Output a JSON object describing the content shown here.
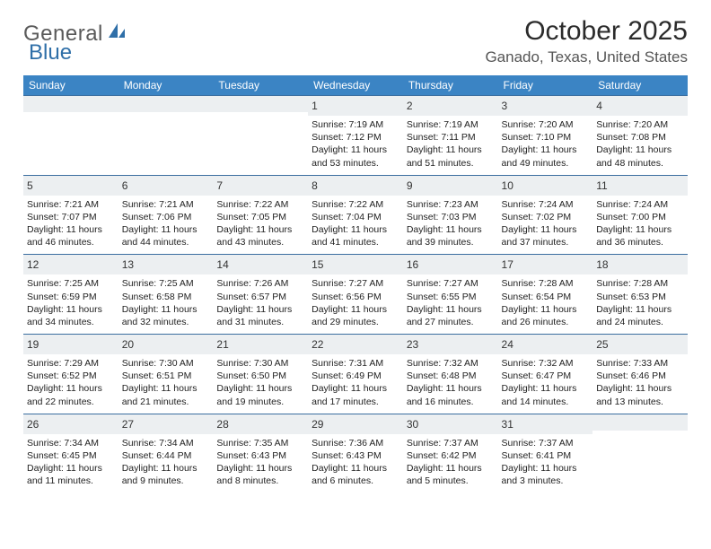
{
  "logo": {
    "word1": "General",
    "word2": "Blue",
    "color_word1": "#6a6a6a",
    "color_word2": "#2f6fa8"
  },
  "title": "October 2025",
  "location": "Ganado, Texas, United States",
  "header_bg": "#3b84c4",
  "day_header_bg": "#eceff1",
  "week_border": "#3b6ea0",
  "days_of_week": [
    "Sunday",
    "Monday",
    "Tuesday",
    "Wednesday",
    "Thursday",
    "Friday",
    "Saturday"
  ],
  "weeks": [
    [
      {
        "n": "",
        "lines": [
          "",
          "",
          "",
          ""
        ]
      },
      {
        "n": "",
        "lines": [
          "",
          "",
          "",
          ""
        ]
      },
      {
        "n": "",
        "lines": [
          "",
          "",
          "",
          ""
        ]
      },
      {
        "n": "1",
        "lines": [
          "Sunrise: 7:19 AM",
          "Sunset: 7:12 PM",
          "Daylight: 11 hours",
          "and 53 minutes."
        ]
      },
      {
        "n": "2",
        "lines": [
          "Sunrise: 7:19 AM",
          "Sunset: 7:11 PM",
          "Daylight: 11 hours",
          "and 51 minutes."
        ]
      },
      {
        "n": "3",
        "lines": [
          "Sunrise: 7:20 AM",
          "Sunset: 7:10 PM",
          "Daylight: 11 hours",
          "and 49 minutes."
        ]
      },
      {
        "n": "4",
        "lines": [
          "Sunrise: 7:20 AM",
          "Sunset: 7:08 PM",
          "Daylight: 11 hours",
          "and 48 minutes."
        ]
      }
    ],
    [
      {
        "n": "5",
        "lines": [
          "Sunrise: 7:21 AM",
          "Sunset: 7:07 PM",
          "Daylight: 11 hours",
          "and 46 minutes."
        ]
      },
      {
        "n": "6",
        "lines": [
          "Sunrise: 7:21 AM",
          "Sunset: 7:06 PM",
          "Daylight: 11 hours",
          "and 44 minutes."
        ]
      },
      {
        "n": "7",
        "lines": [
          "Sunrise: 7:22 AM",
          "Sunset: 7:05 PM",
          "Daylight: 11 hours",
          "and 43 minutes."
        ]
      },
      {
        "n": "8",
        "lines": [
          "Sunrise: 7:22 AM",
          "Sunset: 7:04 PM",
          "Daylight: 11 hours",
          "and 41 minutes."
        ]
      },
      {
        "n": "9",
        "lines": [
          "Sunrise: 7:23 AM",
          "Sunset: 7:03 PM",
          "Daylight: 11 hours",
          "and 39 minutes."
        ]
      },
      {
        "n": "10",
        "lines": [
          "Sunrise: 7:24 AM",
          "Sunset: 7:02 PM",
          "Daylight: 11 hours",
          "and 37 minutes."
        ]
      },
      {
        "n": "11",
        "lines": [
          "Sunrise: 7:24 AM",
          "Sunset: 7:00 PM",
          "Daylight: 11 hours",
          "and 36 minutes."
        ]
      }
    ],
    [
      {
        "n": "12",
        "lines": [
          "Sunrise: 7:25 AM",
          "Sunset: 6:59 PM",
          "Daylight: 11 hours",
          "and 34 minutes."
        ]
      },
      {
        "n": "13",
        "lines": [
          "Sunrise: 7:25 AM",
          "Sunset: 6:58 PM",
          "Daylight: 11 hours",
          "and 32 minutes."
        ]
      },
      {
        "n": "14",
        "lines": [
          "Sunrise: 7:26 AM",
          "Sunset: 6:57 PM",
          "Daylight: 11 hours",
          "and 31 minutes."
        ]
      },
      {
        "n": "15",
        "lines": [
          "Sunrise: 7:27 AM",
          "Sunset: 6:56 PM",
          "Daylight: 11 hours",
          "and 29 minutes."
        ]
      },
      {
        "n": "16",
        "lines": [
          "Sunrise: 7:27 AM",
          "Sunset: 6:55 PM",
          "Daylight: 11 hours",
          "and 27 minutes."
        ]
      },
      {
        "n": "17",
        "lines": [
          "Sunrise: 7:28 AM",
          "Sunset: 6:54 PM",
          "Daylight: 11 hours",
          "and 26 minutes."
        ]
      },
      {
        "n": "18",
        "lines": [
          "Sunrise: 7:28 AM",
          "Sunset: 6:53 PM",
          "Daylight: 11 hours",
          "and 24 minutes."
        ]
      }
    ],
    [
      {
        "n": "19",
        "lines": [
          "Sunrise: 7:29 AM",
          "Sunset: 6:52 PM",
          "Daylight: 11 hours",
          "and 22 minutes."
        ]
      },
      {
        "n": "20",
        "lines": [
          "Sunrise: 7:30 AM",
          "Sunset: 6:51 PM",
          "Daylight: 11 hours",
          "and 21 minutes."
        ]
      },
      {
        "n": "21",
        "lines": [
          "Sunrise: 7:30 AM",
          "Sunset: 6:50 PM",
          "Daylight: 11 hours",
          "and 19 minutes."
        ]
      },
      {
        "n": "22",
        "lines": [
          "Sunrise: 7:31 AM",
          "Sunset: 6:49 PM",
          "Daylight: 11 hours",
          "and 17 minutes."
        ]
      },
      {
        "n": "23",
        "lines": [
          "Sunrise: 7:32 AM",
          "Sunset: 6:48 PM",
          "Daylight: 11 hours",
          "and 16 minutes."
        ]
      },
      {
        "n": "24",
        "lines": [
          "Sunrise: 7:32 AM",
          "Sunset: 6:47 PM",
          "Daylight: 11 hours",
          "and 14 minutes."
        ]
      },
      {
        "n": "25",
        "lines": [
          "Sunrise: 7:33 AM",
          "Sunset: 6:46 PM",
          "Daylight: 11 hours",
          "and 13 minutes."
        ]
      }
    ],
    [
      {
        "n": "26",
        "lines": [
          "Sunrise: 7:34 AM",
          "Sunset: 6:45 PM",
          "Daylight: 11 hours",
          "and 11 minutes."
        ]
      },
      {
        "n": "27",
        "lines": [
          "Sunrise: 7:34 AM",
          "Sunset: 6:44 PM",
          "Daylight: 11 hours",
          "and 9 minutes."
        ]
      },
      {
        "n": "28",
        "lines": [
          "Sunrise: 7:35 AM",
          "Sunset: 6:43 PM",
          "Daylight: 11 hours",
          "and 8 minutes."
        ]
      },
      {
        "n": "29",
        "lines": [
          "Sunrise: 7:36 AM",
          "Sunset: 6:43 PM",
          "Daylight: 11 hours",
          "and 6 minutes."
        ]
      },
      {
        "n": "30",
        "lines": [
          "Sunrise: 7:37 AM",
          "Sunset: 6:42 PM",
          "Daylight: 11 hours",
          "and 5 minutes."
        ]
      },
      {
        "n": "31",
        "lines": [
          "Sunrise: 7:37 AM",
          "Sunset: 6:41 PM",
          "Daylight: 11 hours",
          "and 3 minutes."
        ]
      },
      {
        "n": "",
        "lines": [
          "",
          "",
          "",
          ""
        ]
      }
    ]
  ]
}
